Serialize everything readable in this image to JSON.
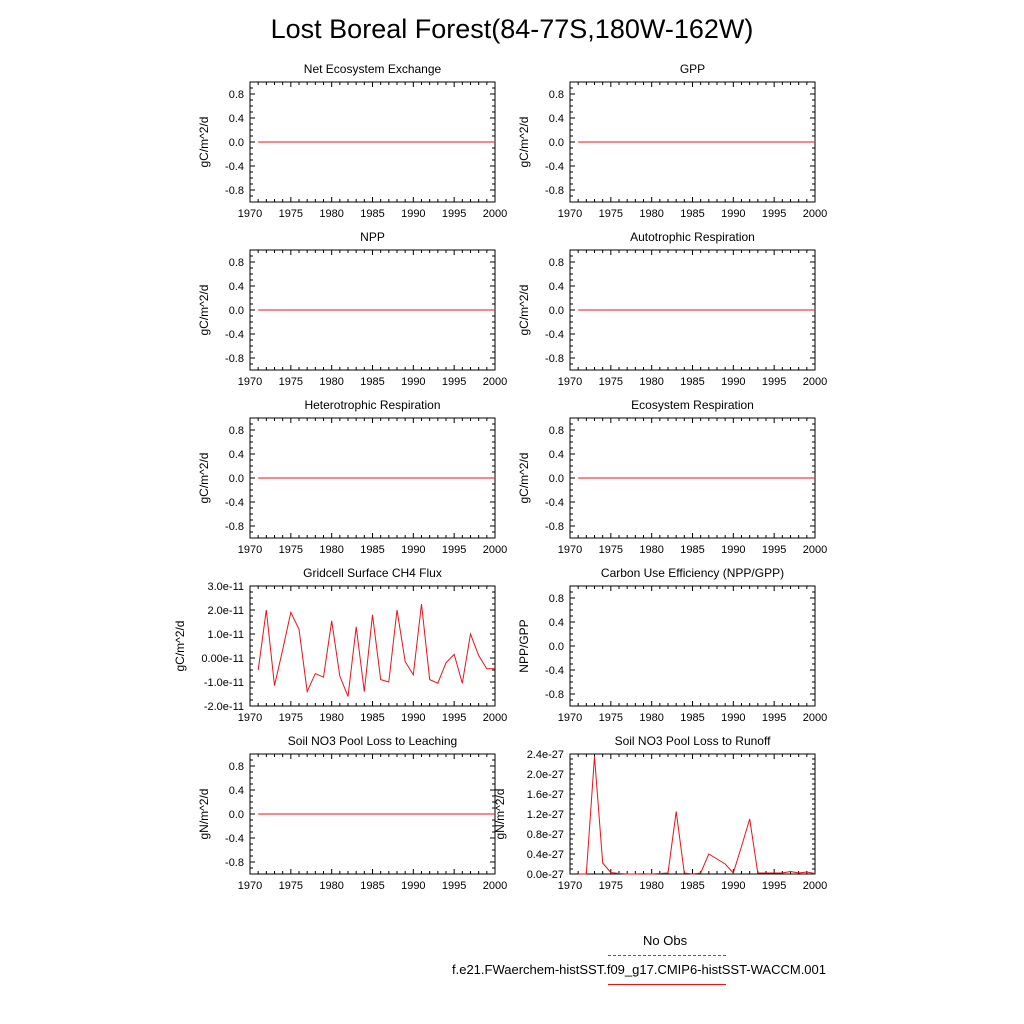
{
  "title": "Lost Boreal Forest(84-77S,180W-162W)",
  "colors": {
    "model": "#e8141a",
    "obs": "#4b4bd8",
    "axis": "#000000"
  },
  "legend": [
    {
      "label": "No Obs",
      "style": "dashed"
    },
    {
      "label": "f.e21.FWaerchem-histSST.f09_g17.CMIP6-histSST-WACCM.001",
      "style": "solid"
    }
  ],
  "chart_data": [
    {
      "type": "line",
      "title": "Net Ecosystem Exchange",
      "ylabel": "gC/m^2/d",
      "xlim": [
        1970,
        2000
      ],
      "ylim": [
        -1,
        1
      ],
      "xticks": [
        1970,
        1975,
        1980,
        1985,
        1990,
        1995,
        2000
      ],
      "yticks": [
        -0.8,
        -0.4,
        0.0,
        0.4,
        0.8
      ],
      "yticklabels": [
        "-0.8",
        "-0.4",
        "0.0",
        "0.4",
        "0.8"
      ],
      "series": [
        {
          "x": [
            1971,
            2000
          ],
          "y": [
            0,
            0
          ]
        }
      ]
    },
    {
      "type": "line",
      "title": "GPP",
      "ylabel": "gC/m^2/d",
      "xlim": [
        1970,
        2000
      ],
      "ylim": [
        -1,
        1
      ],
      "xticks": [
        1970,
        1975,
        1980,
        1985,
        1990,
        1995,
        2000
      ],
      "yticks": [
        -0.8,
        -0.4,
        0.0,
        0.4,
        0.8
      ],
      "yticklabels": [
        "-0.8",
        "-0.4",
        "0.0",
        "0.4",
        "0.8"
      ],
      "series": [
        {
          "x": [
            1971,
            2000
          ],
          "y": [
            0,
            0
          ]
        }
      ]
    },
    {
      "type": "line",
      "title": "NPP",
      "ylabel": "gC/m^2/d",
      "xlim": [
        1970,
        2000
      ],
      "ylim": [
        -1,
        1
      ],
      "xticks": [
        1970,
        1975,
        1980,
        1985,
        1990,
        1995,
        2000
      ],
      "yticks": [
        -0.8,
        -0.4,
        0.0,
        0.4,
        0.8
      ],
      "yticklabels": [
        "-0.8",
        "-0.4",
        "0.0",
        "0.4",
        "0.8"
      ],
      "series": [
        {
          "x": [
            1971,
            2000
          ],
          "y": [
            0,
            0
          ]
        }
      ]
    },
    {
      "type": "line",
      "title": "Autotrophic Respiration",
      "ylabel": "gC/m^2/d",
      "xlim": [
        1970,
        2000
      ],
      "ylim": [
        -1,
        1
      ],
      "xticks": [
        1970,
        1975,
        1980,
        1985,
        1990,
        1995,
        2000
      ],
      "yticks": [
        -0.8,
        -0.4,
        0.0,
        0.4,
        0.8
      ],
      "yticklabels": [
        "-0.8",
        "-0.4",
        "0.0",
        "0.4",
        "0.8"
      ],
      "series": [
        {
          "x": [
            1971,
            2000
          ],
          "y": [
            0,
            0
          ]
        }
      ]
    },
    {
      "type": "line",
      "title": "Heterotrophic Respiration",
      "ylabel": "gC/m^2/d",
      "xlim": [
        1970,
        2000
      ],
      "ylim": [
        -1,
        1
      ],
      "xticks": [
        1970,
        1975,
        1980,
        1985,
        1990,
        1995,
        2000
      ],
      "yticks": [
        -0.8,
        -0.4,
        0.0,
        0.4,
        0.8
      ],
      "yticklabels": [
        "-0.8",
        "-0.4",
        "0.0",
        "0.4",
        "0.8"
      ],
      "series": [
        {
          "x": [
            1971,
            2000
          ],
          "y": [
            0,
            0
          ]
        }
      ]
    },
    {
      "type": "line",
      "title": "Ecosystem Respiration",
      "ylabel": "gC/m^2/d",
      "xlim": [
        1970,
        2000
      ],
      "ylim": [
        -1,
        1
      ],
      "xticks": [
        1970,
        1975,
        1980,
        1985,
        1990,
        1995,
        2000
      ],
      "yticks": [
        -0.8,
        -0.4,
        0.0,
        0.4,
        0.8
      ],
      "yticklabels": [
        "-0.8",
        "-0.4",
        "0.0",
        "0.4",
        "0.8"
      ],
      "series": [
        {
          "x": [
            1971,
            2000
          ],
          "y": [
            0,
            0
          ]
        }
      ]
    },
    {
      "type": "line",
      "title": "Gridcell Surface CH4 Flux",
      "ylabel": "gC/m^2/d",
      "xlim": [
        1970,
        2000
      ],
      "ylim": [
        -2e-11,
        3e-11
      ],
      "xticks": [
        1970,
        1975,
        1980,
        1985,
        1990,
        1995,
        2000
      ],
      "yticks": [
        -2e-11,
        -1e-11,
        0,
        1e-11,
        2e-11,
        3e-11
      ],
      "yticklabels": [
        "-2.0e-11",
        "-1.0e-11",
        "0.00e-11",
        "1.0e-11",
        "2.0e-11",
        "3.0e-11"
      ],
      "series": [
        {
          "x": [
            1971,
            1972,
            1973,
            1974,
            1975,
            1976,
            1977,
            1978,
            1979,
            1980,
            1981,
            1982,
            1983,
            1984,
            1985,
            1986,
            1987,
            1988,
            1989,
            1990,
            1991,
            1992,
            1993,
            1994,
            1995,
            1996,
            1997,
            1998,
            1999,
            2000
          ],
          "y": [
            -5e-12,
            2e-11,
            -1.15e-11,
            3.5e-12,
            1.9e-11,
            1.2e-11,
            -1.4e-11,
            -6.5e-12,
            -8e-12,
            1.55e-11,
            -7.5e-12,
            -1.6e-11,
            1.3e-11,
            -1.4e-11,
            1.8e-11,
            -9e-12,
            -1e-11,
            2e-11,
            -1.5e-12,
            -7e-12,
            2.25e-11,
            -9e-12,
            -1.05e-11,
            -2e-12,
            1.5e-12,
            -1.05e-11,
            1e-11,
            1e-12,
            -4.5e-12,
            -4.5e-12
          ]
        }
      ]
    },
    {
      "type": "line",
      "title": "Carbon Use Efficiency (NPP/GPP)",
      "ylabel": "NPP/GPP",
      "xlim": [
        1970,
        2000
      ],
      "ylim": [
        -1,
        1
      ],
      "xticks": [
        1970,
        1975,
        1980,
        1985,
        1990,
        1995,
        2000
      ],
      "yticks": [
        -0.8,
        -0.4,
        0.0,
        0.4,
        0.8
      ],
      "yticklabels": [
        "-0.8",
        "-0.4",
        "0.0",
        "0.4",
        "0.8"
      ],
      "series": []
    },
    {
      "type": "line",
      "title": "Soil NO3 Pool Loss to Leaching",
      "ylabel": "gN/m^2/d",
      "xlim": [
        1970,
        2000
      ],
      "ylim": [
        -1,
        1
      ],
      "xticks": [
        1970,
        1975,
        1980,
        1985,
        1990,
        1995,
        2000
      ],
      "yticks": [
        -0.8,
        -0.4,
        0.0,
        0.4,
        0.8
      ],
      "yticklabels": [
        "-0.8",
        "-0.4",
        "0.0",
        "0.4",
        "0.8"
      ],
      "series": [
        {
          "x": [
            1971,
            2000
          ],
          "y": [
            0,
            0
          ]
        }
      ]
    },
    {
      "type": "line",
      "title": "Soil NO3 Pool Loss to Runoff",
      "ylabel": "gN/m^2/d",
      "xlim": [
        1970,
        2000
      ],
      "ylim": [
        0,
        2.4e-27
      ],
      "xticks": [
        1970,
        1975,
        1980,
        1985,
        1990,
        1995,
        2000
      ],
      "yticks": [
        0,
        4e-28,
        8e-28,
        1.2e-27,
        1.6e-27,
        2e-27,
        2.4e-27
      ],
      "yticklabels": [
        "0.0e-27",
        "0.4e-27",
        "0.8e-27",
        "1.2e-27",
        "1.6e-27",
        "2.0e-27",
        "2.4e-27"
      ],
      "series": [
        {
          "x": [
            1971,
            1972,
            1973,
            1974,
            1975,
            1976,
            1977,
            1978,
            1979,
            1980,
            1981,
            1982,
            1983,
            1984,
            1985,
            1986,
            1987,
            1988,
            1989,
            1990,
            1991,
            1992,
            1993,
            1994,
            1995,
            1996,
            1997,
            1998,
            1999,
            2000
          ],
          "y": [
            0,
            0,
            2.35e-27,
            2.2e-28,
            3e-29,
            1e-29,
            0,
            0,
            5e-30,
            0,
            1e-29,
            2e-29,
            1.25e-27,
            2e-29,
            0,
            2e-29,
            4e-28,
            3e-28,
            2e-28,
            2e-29,
            5.5e-28,
            1.1e-27,
            2e-29,
            2e-29,
            2e-29,
            2e-29,
            5e-29,
            2e-29,
            4e-29,
            1e-29
          ]
        }
      ]
    }
  ]
}
